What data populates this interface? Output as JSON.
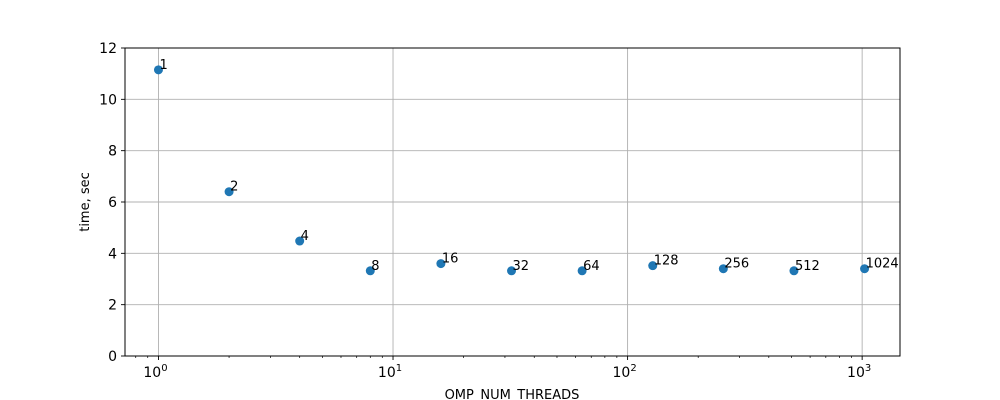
{
  "chart_data": {
    "type": "scatter",
    "xscale": "log",
    "xlim": [
      0.72,
      1450
    ],
    "ylim": [
      0,
      12
    ],
    "xlabel": "OMP_NUM_THREADS",
    "ylabel": "time, sec",
    "grid": true,
    "point_color": "#1f77b4",
    "x_major_ticks": [
      {
        "value": 1,
        "base": "10",
        "exp": "0"
      },
      {
        "value": 10,
        "base": "10",
        "exp": "1"
      },
      {
        "value": 100,
        "base": "10",
        "exp": "2"
      },
      {
        "value": 1000,
        "base": "10",
        "exp": "3"
      }
    ],
    "y_ticks": [
      0,
      2,
      4,
      6,
      8,
      10,
      12
    ],
    "points": [
      {
        "x": 1,
        "y": 11.15,
        "label": "1"
      },
      {
        "x": 2,
        "y": 6.4,
        "label": "2"
      },
      {
        "x": 4,
        "y": 4.48,
        "label": "4"
      },
      {
        "x": 8,
        "y": 3.32,
        "label": "8"
      },
      {
        "x": 16,
        "y": 3.6,
        "label": "16"
      },
      {
        "x": 32,
        "y": 3.32,
        "label": "32"
      },
      {
        "x": 64,
        "y": 3.32,
        "label": "64"
      },
      {
        "x": 128,
        "y": 3.52,
        "label": "128"
      },
      {
        "x": 256,
        "y": 3.4,
        "label": "256"
      },
      {
        "x": 512,
        "y": 3.32,
        "label": "512"
      },
      {
        "x": 1024,
        "y": 3.4,
        "label": "1024"
      }
    ]
  }
}
